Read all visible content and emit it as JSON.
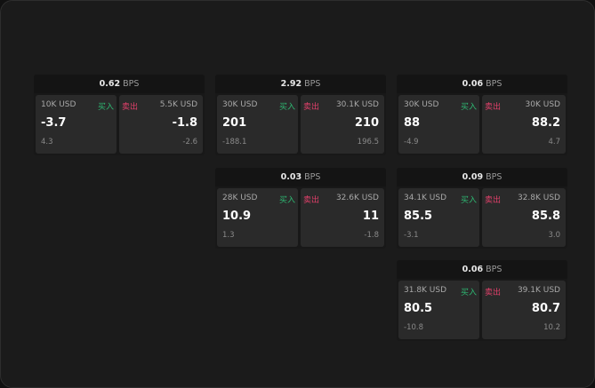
{
  "labels": {
    "buy": "买入",
    "sell": "卖出",
    "unit": "BPS"
  },
  "colors": {
    "buy": "#2eb872",
    "sell": "#e0406a"
  },
  "cards": [
    {
      "spread": "0.62",
      "bid": {
        "size": "10K USD",
        "price": "-3.7",
        "change": "4.3"
      },
      "ask": {
        "size": "5.5K USD",
        "price": "-1.8",
        "change": "-2.6"
      }
    },
    {
      "spread": "2.92",
      "bid": {
        "size": "30K USD",
        "price": "201",
        "change": "-188.1"
      },
      "ask": {
        "size": "30.1K USD",
        "price": "210",
        "change": "196.5"
      }
    },
    {
      "spread": "0.06",
      "bid": {
        "size": "30K USD",
        "price": "88",
        "change": "-4.9"
      },
      "ask": {
        "size": "30K USD",
        "price": "88.2",
        "change": "4.7"
      }
    },
    {
      "spread": "0.03",
      "bid": {
        "size": "28K USD",
        "price": "10.9",
        "change": "1.3"
      },
      "ask": {
        "size": "32.6K USD",
        "price": "11",
        "change": "-1.8"
      }
    },
    {
      "spread": "0.09",
      "bid": {
        "size": "34.1K USD",
        "price": "85.5",
        "change": "-3.1"
      },
      "ask": {
        "size": "32.8K USD",
        "price": "85.8",
        "change": "3.0"
      }
    },
    {
      "spread": "0.06",
      "bid": {
        "size": "31.8K USD",
        "price": "80.5",
        "change": "-10.8"
      },
      "ask": {
        "size": "39.1K USD",
        "price": "80.7",
        "change": "10.2"
      }
    }
  ]
}
